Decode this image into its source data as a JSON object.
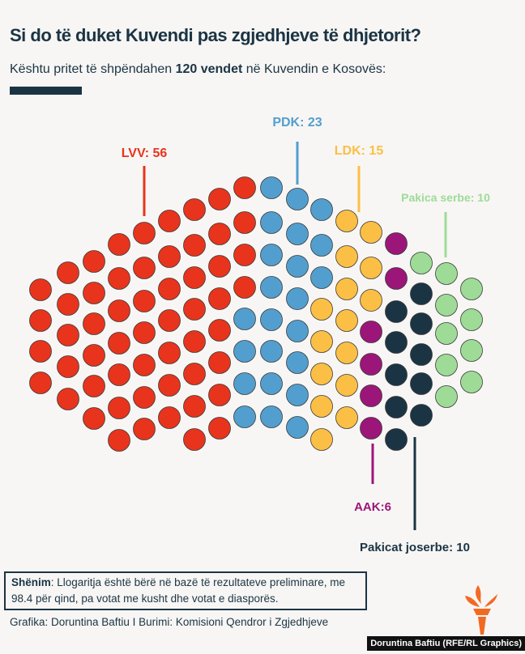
{
  "title": "Si do të duket Kuvendi pas zgjedhjeve të dhjetorit?",
  "subtitle": {
    "pre": "Kështu pritet të shpëndahen ",
    "bold": "120 vendet",
    "post": " në Kuvendin e Kosovës:"
  },
  "chart_data": {
    "type": "parliament",
    "total_seats": 120,
    "series": [
      {
        "name": "LVV",
        "label": "LVV: 56",
        "value": 56,
        "color": "#e8341c"
      },
      {
        "name": "PDK",
        "label": "PDK: 23",
        "value": 23,
        "color": "#529fcf"
      },
      {
        "name": "LDK",
        "label": "LDK: 15",
        "value": 15,
        "color": "#fcbf45"
      },
      {
        "name": "AAK",
        "label": "AAK:6",
        "value": 6,
        "color": "#9c167a"
      },
      {
        "name": "Pakicat joserbe",
        "label": "Pakicat joserbe: 10",
        "value": 10,
        "color": "#1b3444"
      },
      {
        "name": "Pakica serbe",
        "label": "Pakica serbe: 10",
        "value": 10,
        "color": "#9edb97"
      }
    ]
  },
  "note": {
    "bold": "Shënim",
    "text": ": Llogaritja është bërë në bazë të rezultateve preliminare, me 98.4 për qind, pa votat me kusht dhe votat e diasporës."
  },
  "credit": "Grafika: Doruntina Baftiu I Burimi: Komisioni Qendror i Zgjedhjeve",
  "tag": "Doruntina Baftiu (RFE/RL Graphics)",
  "logo": "rfe-rl-torch-logo"
}
